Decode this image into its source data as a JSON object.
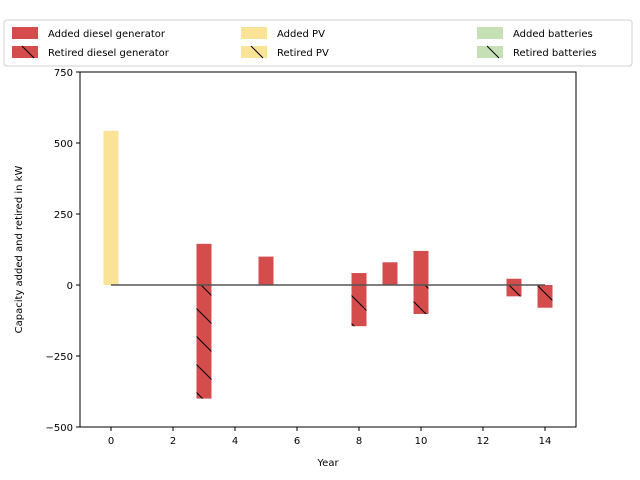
{
  "chart_data": {
    "type": "bar",
    "xlabel": "Year",
    "ylabel": "Capacity added and retired in kW",
    "xlim": [
      -1,
      15
    ],
    "ylim": [
      -500,
      750
    ],
    "xticks": [
      0,
      2,
      4,
      6,
      8,
      10,
      12,
      14
    ],
    "yticks": [
      -500,
      -250,
      0,
      250,
      500,
      750
    ],
    "legend_position": "top",
    "series": [
      {
        "name": "Added diesel generator",
        "color": "#d44c4c",
        "hatch": false,
        "points": [
          {
            "x": 3,
            "y": 145
          },
          {
            "x": 5,
            "y": 100
          },
          {
            "x": 8,
            "y": 42
          },
          {
            "x": 9,
            "y": 80
          },
          {
            "x": 10,
            "y": 120
          },
          {
            "x": 13,
            "y": 22
          }
        ]
      },
      {
        "name": "Added PV",
        "color": "#f8e397",
        "hatch": false,
        "points": [
          {
            "x": 0,
            "y": 543
          }
        ]
      },
      {
        "name": "Added batteries",
        "color": "#c5e0b4",
        "hatch": false,
        "points": []
      },
      {
        "name": "Retired diesel generator",
        "color": "#d44c4c",
        "hatch": true,
        "points": [
          {
            "x": 3,
            "y": -400
          },
          {
            "x": 8,
            "y": -145
          },
          {
            "x": 10,
            "y": -102
          },
          {
            "x": 13,
            "y": -40
          },
          {
            "x": 14,
            "y": -80
          }
        ]
      },
      {
        "name": "Retired PV",
        "color": "#f8e397",
        "hatch": true,
        "points": []
      },
      {
        "name": "Retired batteries",
        "color": "#c5e0b4",
        "hatch": true,
        "points": []
      }
    ],
    "baseline_color": "#555555"
  }
}
